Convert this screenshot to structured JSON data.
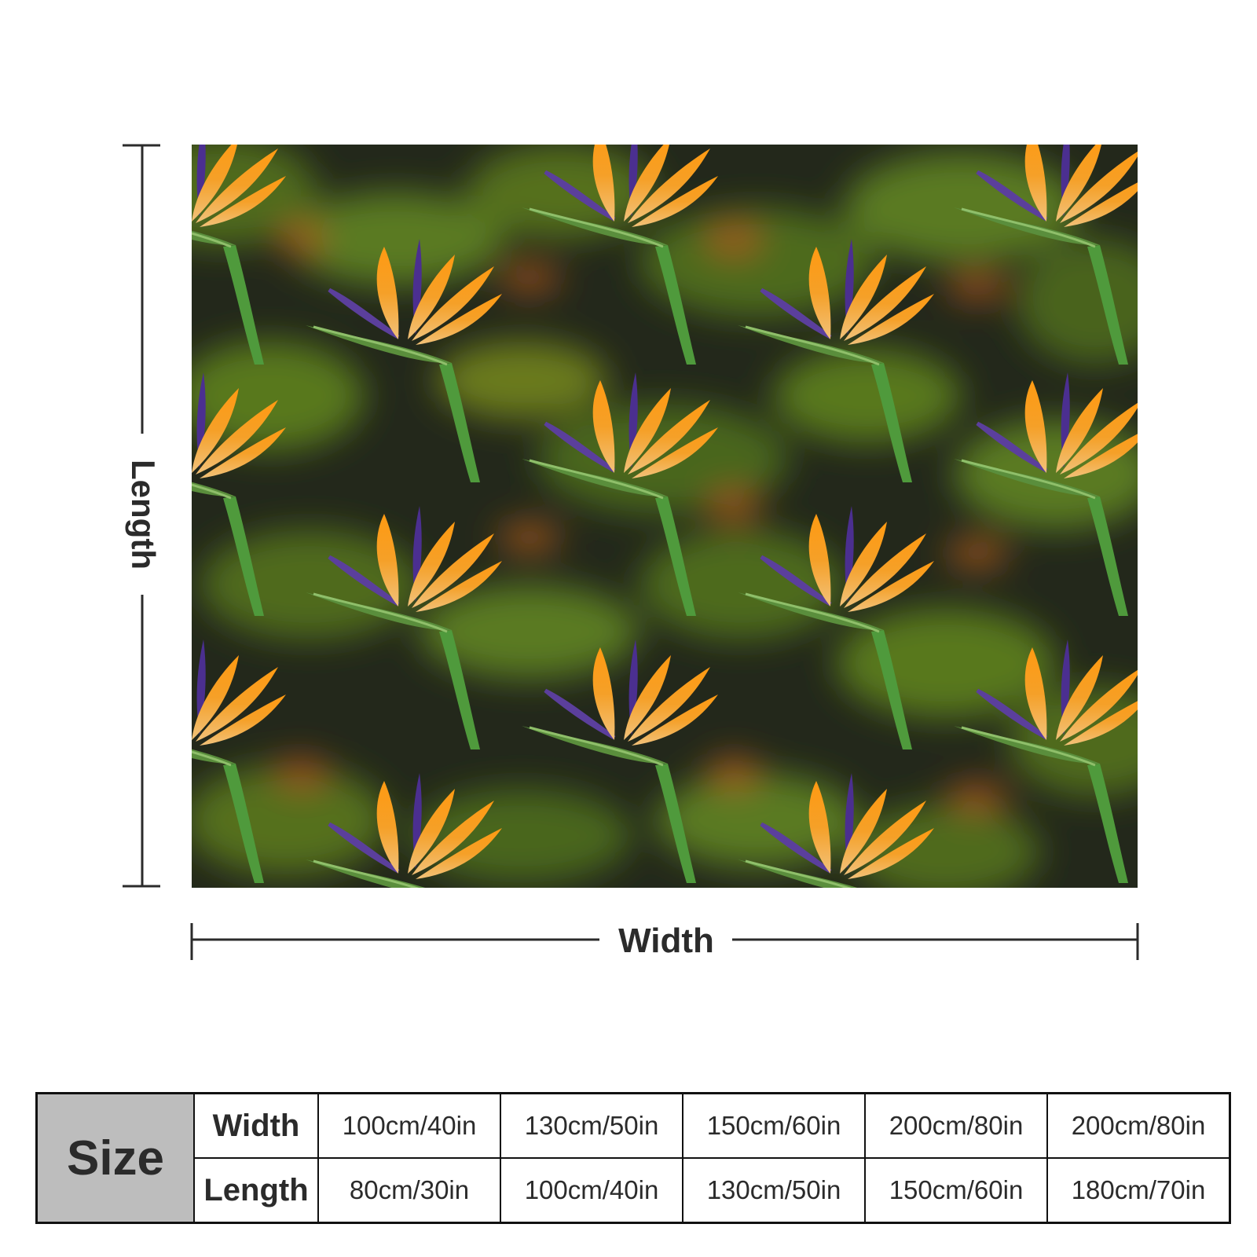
{
  "diagram": {
    "length_label": "Length",
    "width_label": "Width"
  },
  "blanket": {
    "pattern": "bird-of-paradise flower tiles",
    "colors": {
      "background_dark": "#1f2418",
      "background_green": "#4a5e1c",
      "petal_orange": "#f5a028",
      "petal_purple": "#5b3f9c",
      "stem_green": "#4f9a3c"
    }
  },
  "size_table": {
    "header": "Size",
    "rows": [
      {
        "label": "Width",
        "values": [
          "100cm/40in",
          "130cm/50in",
          "150cm/60in",
          "200cm/80in",
          "200cm/80in"
        ]
      },
      {
        "label": "Length",
        "values": [
          "80cm/30in",
          "100cm/40in",
          "130cm/50in",
          "150cm/60in",
          "180cm/70in"
        ]
      }
    ]
  }
}
